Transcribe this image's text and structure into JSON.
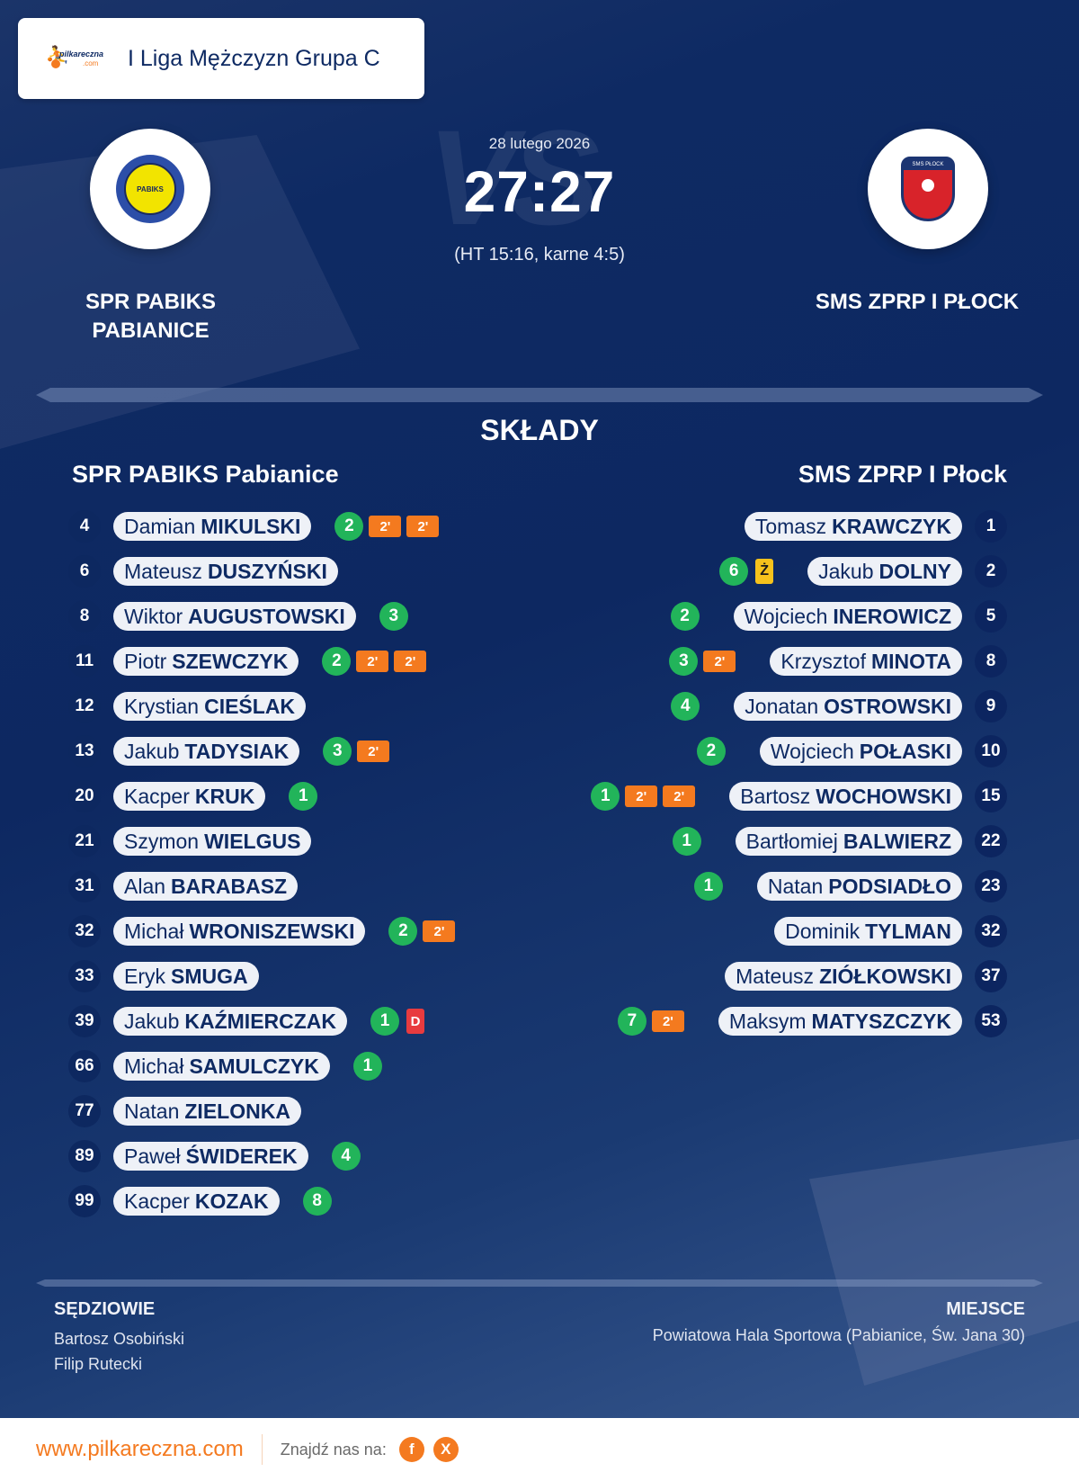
{
  "header": {
    "brand": {
      "name": "pilkareczna",
      "suffix": ".com"
    },
    "league": "I Liga Mężczyzn Grupa C"
  },
  "match": {
    "date": "28 lutego 2026",
    "score": "27:27",
    "detail": "(HT 15:16, karne 4:5)",
    "vs_watermark": "VS",
    "home": {
      "name_line1": "SPR PABIKS",
      "name_line2": "PABIANICE",
      "logo": "pabiks-crest",
      "crest_text": "PABIKS"
    },
    "away": {
      "name": "SMS ZPRP I PŁOCK",
      "logo": "sms-plock-crest",
      "crest_text": "SMS PŁOCK"
    }
  },
  "lineups": {
    "title": "SKŁADY",
    "home": {
      "team": "SPR PABIKS Pabianice",
      "players": [
        {
          "num": "4",
          "first": "Damian",
          "last": "MIKULSKI",
          "goals": "2",
          "cards": [
            "2'",
            "2'"
          ]
        },
        {
          "num": "6",
          "first": "Mateusz",
          "last": "DUSZYŃSKI",
          "goals": null,
          "cards": []
        },
        {
          "num": "8",
          "first": "Wiktor",
          "last": "AUGUSTOWSKI",
          "goals": "3",
          "cards": []
        },
        {
          "num": "11",
          "first": "Piotr",
          "last": "SZEWCZYK",
          "goals": "2",
          "cards": [
            "2'",
            "2'"
          ]
        },
        {
          "num": "12",
          "first": "Krystian",
          "last": "CIEŚLAK",
          "goals": null,
          "cards": []
        },
        {
          "num": "13",
          "first": "Jakub",
          "last": "TADYSIAK",
          "goals": "3",
          "cards": [
            "2'"
          ]
        },
        {
          "num": "20",
          "first": "Kacper",
          "last": "KRUK",
          "goals": "1",
          "cards": []
        },
        {
          "num": "21",
          "first": "Szymon",
          "last": "WIELGUS",
          "goals": null,
          "cards": []
        },
        {
          "num": "31",
          "first": "Alan",
          "last": "BARABASZ",
          "goals": null,
          "cards": []
        },
        {
          "num": "32",
          "first": "Michał",
          "last": "WRONISZEWSKI",
          "goals": "2",
          "cards": [
            "2'"
          ]
        },
        {
          "num": "33",
          "first": "Eryk",
          "last": "SMUGA",
          "goals": null,
          "cards": []
        },
        {
          "num": "39",
          "first": "Jakub",
          "last": "KAŹMIERCZAK",
          "goals": "1",
          "cards": [
            "D"
          ]
        },
        {
          "num": "66",
          "first": "Michał",
          "last": "SAMULCZYK",
          "goals": "1",
          "cards": []
        },
        {
          "num": "77",
          "first": "Natan",
          "last": "ZIELONKA",
          "goals": null,
          "cards": []
        },
        {
          "num": "89",
          "first": "Paweł",
          "last": "ŚWIDEREK",
          "goals": "4",
          "cards": []
        },
        {
          "num": "99",
          "first": "Kacper",
          "last": "KOZAK",
          "goals": "8",
          "cards": []
        }
      ]
    },
    "away": {
      "team": "SMS ZPRP I Płock",
      "players": [
        {
          "num": "1",
          "first": "Tomasz",
          "last": "KRAWCZYK",
          "goals": null,
          "cards": []
        },
        {
          "num": "2",
          "first": "Jakub",
          "last": "DOLNY",
          "goals": "6",
          "cards": [
            "Ż"
          ]
        },
        {
          "num": "5",
          "first": "Wojciech",
          "last": "INEROWICZ",
          "goals": "2",
          "cards": []
        },
        {
          "num": "8",
          "first": "Krzysztof",
          "last": "MINOTA",
          "goals": "3",
          "cards": [
            "2'"
          ]
        },
        {
          "num": "9",
          "first": "Jonatan",
          "last": "OSTROWSKI",
          "goals": "4",
          "cards": []
        },
        {
          "num": "10",
          "first": "Wojciech",
          "last": "POŁASKI",
          "goals": "2",
          "cards": []
        },
        {
          "num": "15",
          "first": "Bartosz",
          "last": "WOCHOWSKI",
          "goals": "1",
          "cards": [
            "2'",
            "2'"
          ]
        },
        {
          "num": "22",
          "first": "Bartłomiej",
          "last": "BALWIERZ",
          "goals": "1",
          "cards": []
        },
        {
          "num": "23",
          "first": "Natan",
          "last": "PODSIADŁO",
          "goals": "1",
          "cards": []
        },
        {
          "num": "32",
          "first": "Dominik",
          "last": "TYLMAN",
          "goals": null,
          "cards": []
        },
        {
          "num": "37",
          "first": "Mateusz",
          "last": "ZIÓŁKOWSKI",
          "goals": null,
          "cards": []
        },
        {
          "num": "53",
          "first": "Maksym",
          "last": "MATYSZCZYK",
          "goals": "7",
          "cards": [
            "2'"
          ]
        }
      ]
    }
  },
  "officials": {
    "title": "SĘDZIOWIE",
    "referees": [
      "Bartosz Osobiński",
      "Filip Rutecki"
    ]
  },
  "venue": {
    "title": "MIEJSCE",
    "text": "Powiatowa Hala Sportowa (Pabianice, Św. Jana 30)"
  },
  "footer": {
    "site": "www.pilkareczna.com",
    "find_us": "Znajdź nas na:",
    "social": [
      {
        "name": "facebook",
        "glyph": "f"
      },
      {
        "name": "x",
        "glyph": "X"
      }
    ]
  },
  "colors": {
    "background": "#0d2861",
    "accent": "#f47a20",
    "goal": "#22b45a",
    "two_min": "#f47a1f",
    "yellow": "#f6c21c",
    "red": "#e83b3f",
    "pill": "#eef1f7",
    "text_dark": "#0e2a63"
  }
}
